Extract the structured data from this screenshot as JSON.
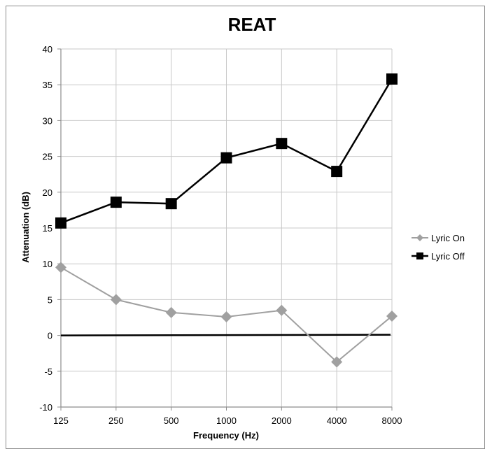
{
  "chart_data": {
    "type": "line",
    "title": "REAT",
    "xlabel": "Frequency (Hz)",
    "ylabel": "Attenuation (dB)",
    "categories": [
      "125",
      "250",
      "500",
      "1000",
      "2000",
      "4000",
      "8000"
    ],
    "ylim": [
      -10,
      40
    ],
    "yticks": [
      -10,
      -5,
      0,
      5,
      10,
      15,
      20,
      25,
      30,
      35,
      40
    ],
    "grid": true,
    "legend_position": "right",
    "series": [
      {
        "name": "Lyric On",
        "values": [
          9.5,
          5.0,
          3.2,
          2.6,
          3.5,
          -3.7,
          2.7
        ],
        "color": "#a0a0a0",
        "marker": "diamond"
      },
      {
        "name": "Lyric Off",
        "values": [
          15.7,
          18.6,
          18.4,
          24.8,
          26.8,
          22.9,
          35.8
        ],
        "color": "#000000",
        "marker": "square"
      }
    ],
    "reference_line": {
      "y": 0,
      "color": "#000000"
    }
  }
}
